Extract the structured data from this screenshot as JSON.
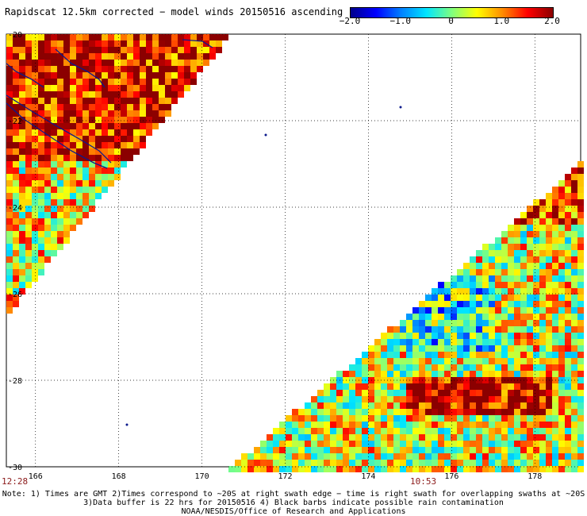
{
  "title": "Rapidscat 12.5km corrected − model winds 20150516 ascending",
  "colorbar": {
    "ticks": [
      {
        "label": "−2.0",
        "value": -2.0
      },
      {
        "label": "−1.0",
        "value": -1.0
      },
      {
        "label": "0",
        "value": 0
      },
      {
        "label": "1.0",
        "value": 1.0
      },
      {
        "label": "2.0",
        "value": 2.0
      }
    ],
    "colors": [
      "#00008b",
      "#0000ff",
      "#0080ff",
      "#00e5ff",
      "#7fff7f",
      "#ffff00",
      "#ff8c00",
      "#ff0000",
      "#8b0000"
    ]
  },
  "map": {
    "lon_range": [
      165.3,
      179.1
    ],
    "lat_range": [
      -30,
      -20
    ],
    "lon_ticks": [
      {
        "value": 168,
        "label": "168"
      },
      {
        "value": 170,
        "label": "170"
      },
      {
        "value": 172,
        "label": "172"
      },
      {
        "value": 174,
        "label": "174"
      },
      {
        "value": 176,
        "label": "176"
      },
      {
        "value": 178,
        "label": "178"
      },
      {
        "value": 166,
        "label": "166"
      }
    ],
    "lat_ticks": [
      {
        "value": -20,
        "label": "-20"
      },
      {
        "value": -22,
        "label": "-22"
      },
      {
        "value": -24,
        "label": "-24"
      },
      {
        "value": -26,
        "label": "-26"
      },
      {
        "value": -28,
        "label": "-28"
      },
      {
        "value": -30,
        "label": "-30"
      }
    ],
    "land_color": "#0b1a8c"
  },
  "times": {
    "left": "12:28",
    "middle": "10:53"
  },
  "notes": [
    "Note: 1) Times are GMT 2)Times correspond to ~20S at right swath edge − time is right swath for overlapping swaths at ~20S",
    "3)Data buffer is 22 hrs for 20150516 4) Black barbs indicate possible rain contamination",
    "NOAA/NESDIS/Office of Research and Applications"
  ]
}
